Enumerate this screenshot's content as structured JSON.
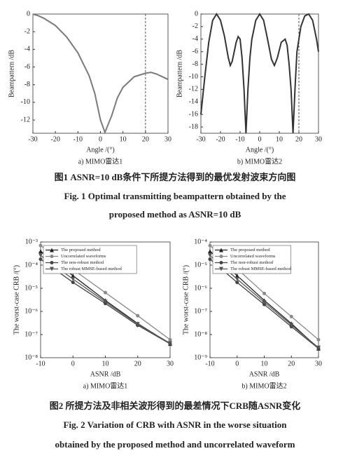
{
  "chart_data": [
    {
      "type": "line",
      "subtitle": "a) MIMO雷达1",
      "xlabel": "Angle /(°)",
      "ylabel": "Beampattern /dB",
      "color": "#7a7a7a",
      "x": [
        -30,
        -27.5,
        -25,
        -20,
        -15,
        -10,
        -5,
        -2.5,
        0,
        2,
        5,
        7.5,
        10,
        15,
        20,
        22.5,
        25,
        27.5,
        30
      ],
      "values": [
        0,
        -0.2,
        -0.5,
        -1.3,
        -2.6,
        -4.4,
        -7,
        -9,
        -12,
        -13.4,
        -11.5,
        -9.5,
        -8.3,
        -7.1,
        -6.7,
        -6.6,
        -6.8,
        -7.1,
        -7.4
      ],
      "xlim": [
        -30,
        30
      ],
      "ylim": [
        -13.5,
        0
      ],
      "xticks": [
        -30,
        -20,
        -10,
        0,
        10,
        20,
        30
      ],
      "yticks": [
        0,
        -2,
        -4,
        -6,
        -8,
        -10,
        -12
      ],
      "vline": 20
    },
    {
      "type": "line",
      "subtitle": "b) MIMO雷达2",
      "xlabel": "Angle /(°)",
      "ylabel": "Beampattern /dB",
      "color": "#333333",
      "x": [
        -30,
        -28,
        -26,
        -24,
        -22,
        -20,
        -18,
        -16,
        -15,
        -14,
        -12,
        -11,
        -10,
        -9,
        -8,
        -7,
        -6,
        -5,
        -4,
        -2,
        0,
        2,
        4,
        6,
        7.5,
        9,
        11,
        13,
        14,
        15,
        16,
        17,
        18,
        19,
        21,
        23,
        25,
        27,
        29,
        30
      ],
      "values": [
        -16,
        -10,
        -4.5,
        -1,
        0,
        -1,
        -3.5,
        -7,
        -8.2,
        -7.5,
        -4.5,
        -3.6,
        -4,
        -7,
        -12,
        -19,
        -12,
        -7,
        -4,
        -1,
        0,
        -1,
        -4,
        -7.2,
        -8.2,
        -7,
        -4.5,
        -4,
        -5,
        -8,
        -12,
        -19,
        -12,
        -6,
        -2,
        -0.3,
        0,
        -1,
        -4,
        -6
      ],
      "xlim": [
        -30,
        30
      ],
      "ylim": [
        -19,
        0
      ],
      "xticks": [
        -30,
        -20,
        -10,
        0,
        10,
        20,
        30
      ],
      "yticks": [
        0,
        -2,
        -4,
        -6,
        -8,
        -10,
        -12,
        -14,
        -16,
        -18
      ],
      "vline": 20
    },
    {
      "type": "line",
      "log_y": true,
      "subtitle": "a) MIMO雷达1",
      "xlabel": "ASNR /dB",
      "ylabel": "The worst-case CRB /(°)",
      "legend": "upper left",
      "x": [
        -10,
        0,
        10,
        20,
        30
      ],
      "series": [
        {
          "name": "The proposed method",
          "color": "#222222",
          "marker": "triangle-up",
          "values": [
            0.0004,
            3.5e-05,
            3e-06,
            3e-07,
            4e-08
          ]
        },
        {
          "name": "Uncorrelated waveforms",
          "color": "#8a8a8a",
          "marker": "circle",
          "values": [
            0.0007,
            6.5e-05,
            6.5e-06,
            6.5e-07,
            6e-08
          ]
        },
        {
          "name": "The non-robust method",
          "color": "#444444",
          "marker": "circle",
          "values": [
            0.00018,
            1.8e-05,
            2.2e-06,
            2.5e-07,
            4e-08
          ]
        },
        {
          "name": "The robust MMSE-based method",
          "color": "#555555",
          "marker": "triangle-down",
          "values": [
            0.00026,
            2.5e-05,
            2.6e-06,
            2.8e-07,
            4.2e-08
          ]
        }
      ],
      "xlim": [
        -10,
        30
      ],
      "ylim": [
        1e-08,
        0.001
      ],
      "xticks": [
        -10,
        0,
        10,
        20,
        30
      ],
      "yticks": [
        {
          "value": 0.001,
          "label": "10⁻³"
        },
        {
          "value": 0.0001,
          "label": "10⁻⁴"
        },
        {
          "value": 1e-05,
          "label": "10⁻⁵"
        },
        {
          "value": 1e-06,
          "label": "10⁻⁶"
        },
        {
          "value": 1e-07,
          "label": "10⁻⁷"
        },
        {
          "value": 1e-08,
          "label": "10⁻⁸"
        }
      ]
    },
    {
      "type": "line",
      "log_y": true,
      "subtitle": "b) MIMO雷达2",
      "xlabel": "ASNR /dB",
      "ylabel": "The worst-case CRB /(°)",
      "legend": "upper left",
      "x": [
        -10,
        0,
        10,
        20,
        30
      ],
      "series": [
        {
          "name": "The proposed method",
          "color": "#222222",
          "marker": "triangle-up",
          "values": [
            4e-05,
            3.5e-06,
            3e-07,
            3e-08,
            2.5e-09
          ]
        },
        {
          "name": "Uncorrelated waveforms",
          "color": "#8a8a8a",
          "marker": "circle",
          "values": [
            7e-05,
            7e-06,
            6e-07,
            6e-08,
            6e-09
          ]
        },
        {
          "name": "The non-robust method",
          "color": "#444444",
          "marker": "circle",
          "values": [
            1.8e-05,
            1.8e-06,
            2e-07,
            2.2e-08,
            2.5e-09
          ]
        },
        {
          "name": "The robust MMSE-based method",
          "color": "#555555",
          "marker": "triangle-down",
          "values": [
            2.6e-05,
            2.5e-06,
            2.5e-07,
            2.6e-08,
            2.7e-09
          ]
        }
      ],
      "xlim": [
        -10,
        30
      ],
      "ylim": [
        1e-09,
        0.0001
      ],
      "xticks": [
        -10,
        0,
        10,
        20,
        30
      ],
      "yticks": [
        {
          "value": 0.0001,
          "label": "10⁻⁴"
        },
        {
          "value": 1e-05,
          "label": "10⁻⁵"
        },
        {
          "value": 1e-06,
          "label": "10⁻⁶"
        },
        {
          "value": 1e-07,
          "label": "10⁻⁷"
        },
        {
          "value": 1e-08,
          "label": "10⁻⁸"
        },
        {
          "value": 1e-09,
          "label": "10⁻⁹"
        }
      ]
    }
  ],
  "figure_captions": {
    "fig1": [
      "图1  ASNR=10 dB条件下所提方法得到的最优发射波束方向图",
      "Fig. 1  Optimal transmitting beampattern obtained by the",
      "proposed method as ASNR=10 dB"
    ],
    "fig2": [
      "图2  所提方法及非相关波形得到的最差情况下CRB随ASNR变化",
      "Fig. 2  Variation of CRB with ASNR in the worse situation",
      "obtained by the proposed method and uncorrelated waveform"
    ]
  }
}
